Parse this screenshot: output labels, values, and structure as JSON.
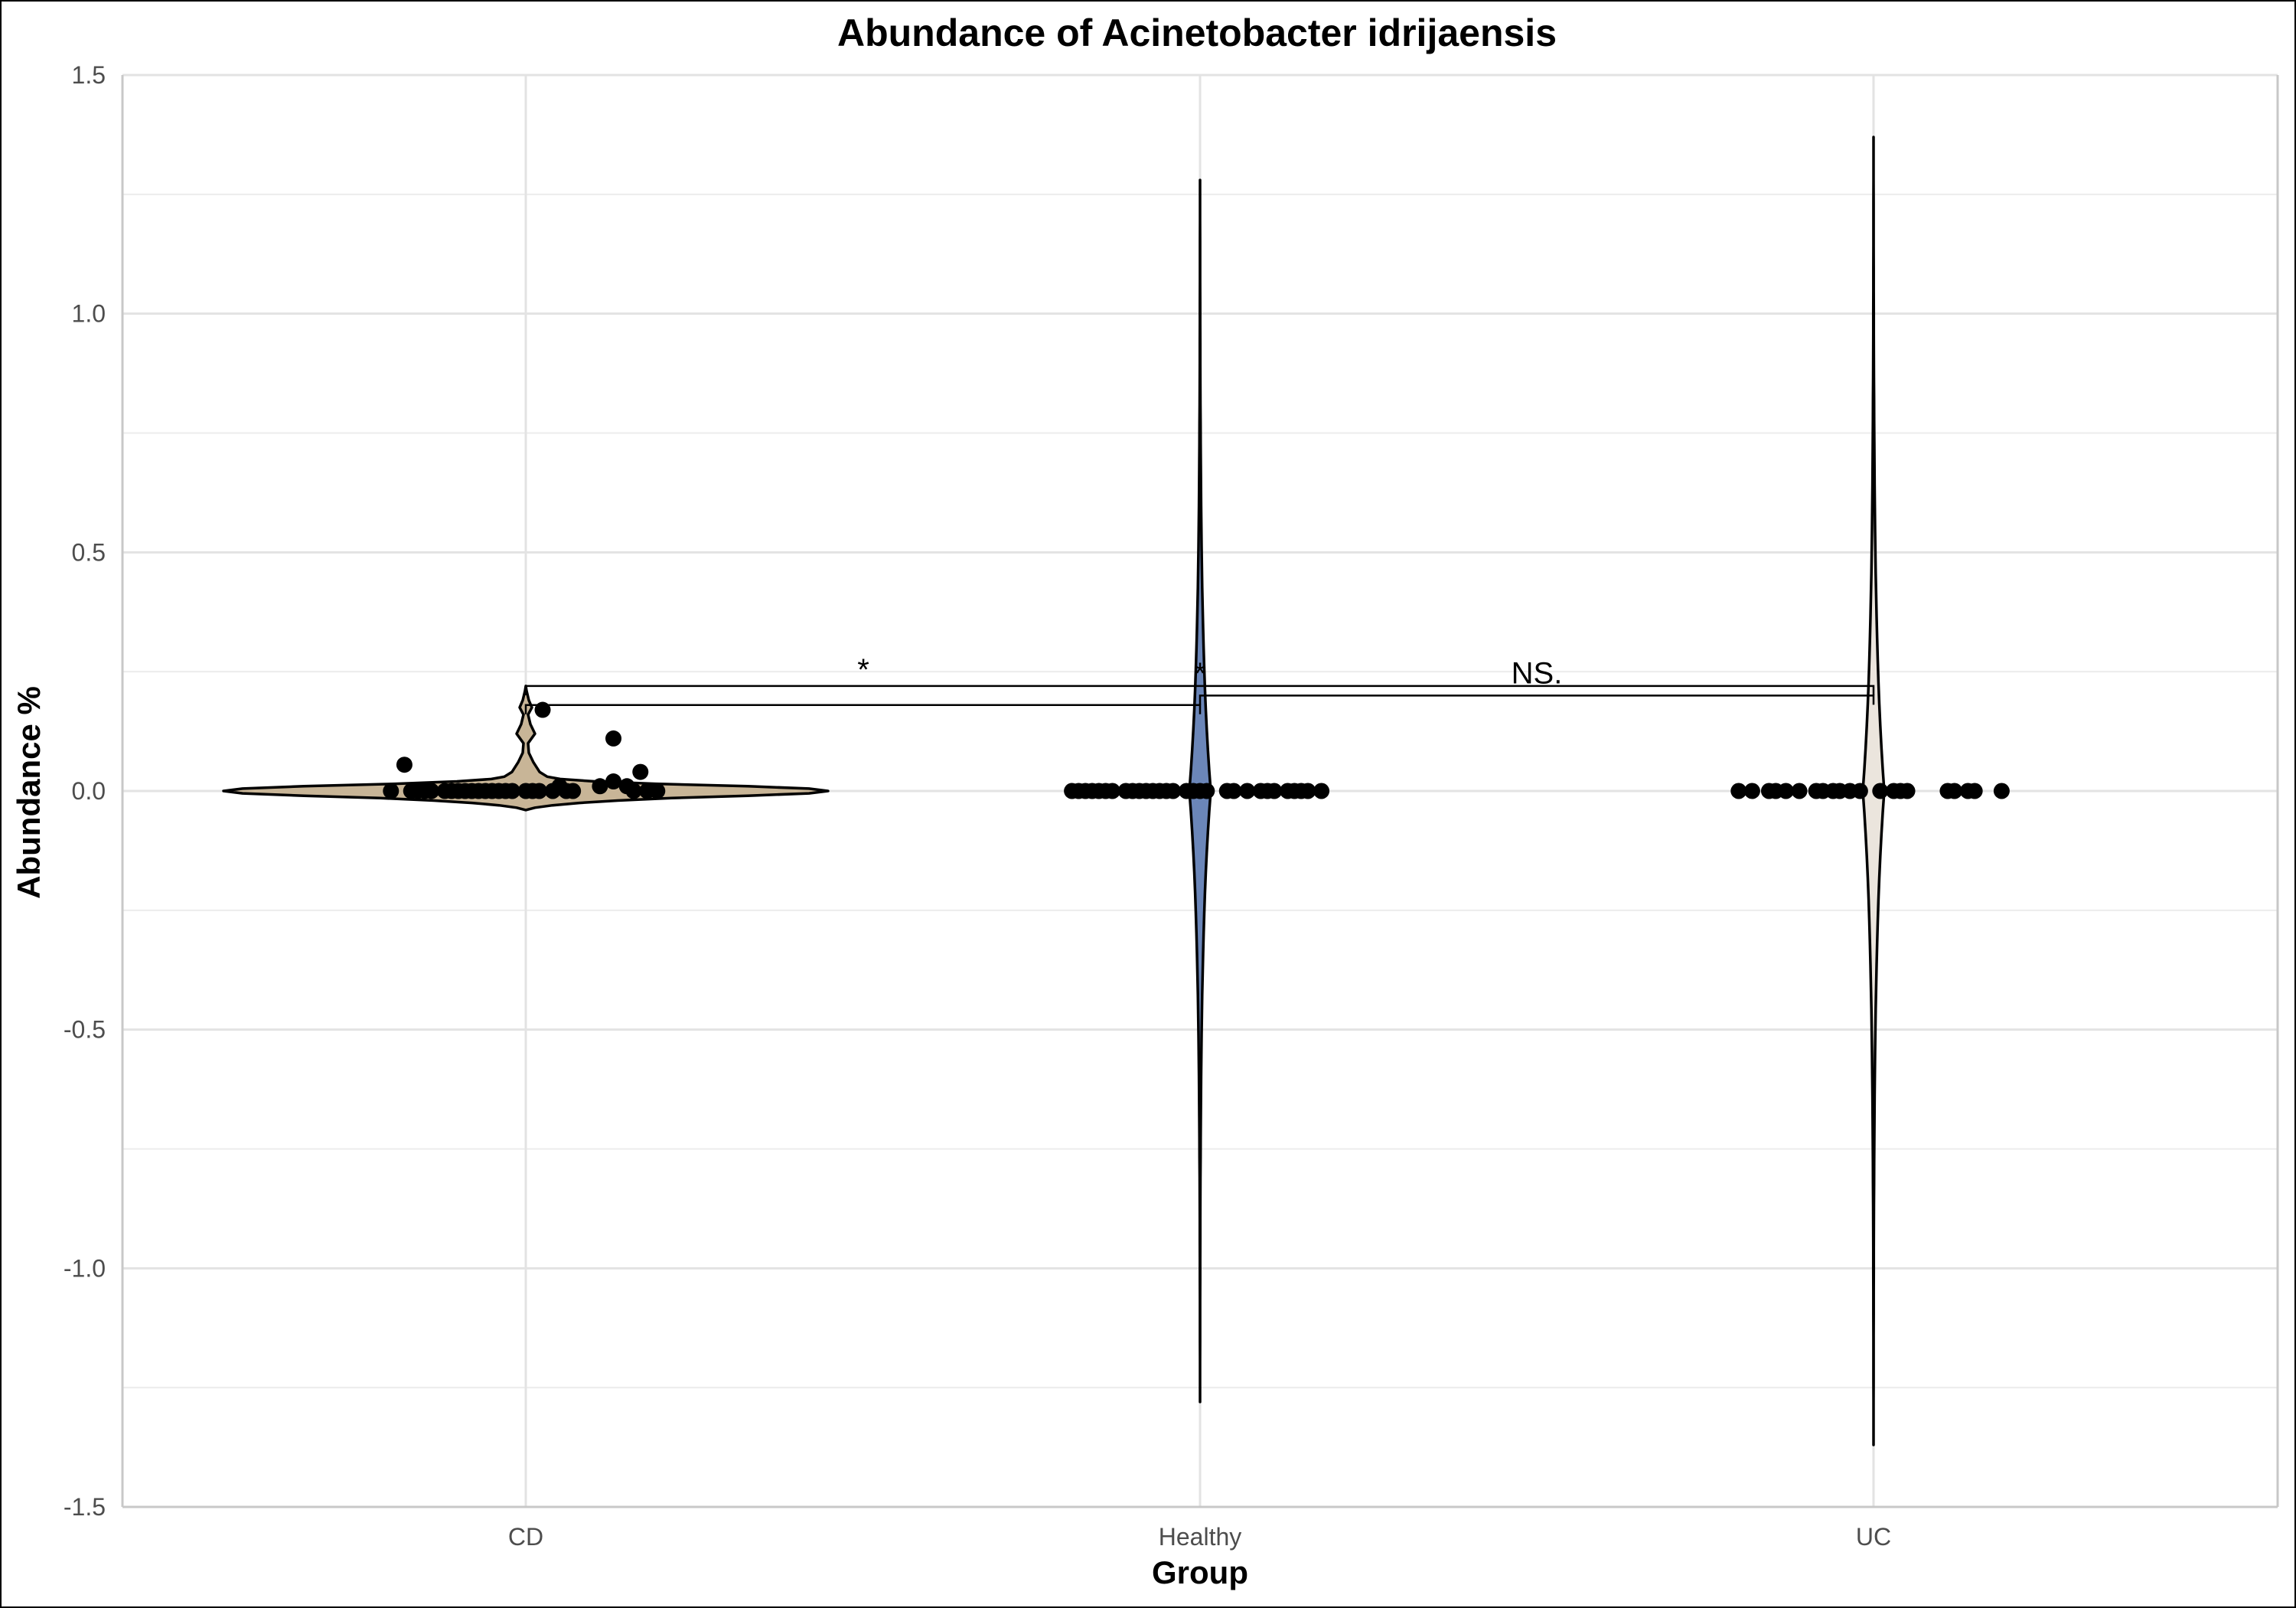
{
  "chart_data": {
    "type": "violin",
    "title": "Abundance of Acinetobacter idrijaensis",
    "xlabel": "Group",
    "ylabel": "Abundance %",
    "ylim": [
      -1.5,
      1.5
    ],
    "yticks": [
      -1.5,
      -1.0,
      -0.5,
      0.0,
      0.5,
      1.0,
      1.5
    ],
    "ytick_labels": [
      "-1.5",
      "-1.0",
      "-0.5",
      "0.0",
      "0.5",
      "1.0",
      "1.5"
    ],
    "categories": [
      "CD",
      "Healthy",
      "UC"
    ],
    "grid": true,
    "legend": "none",
    "groups": [
      {
        "name": "CD",
        "color": "#c8b597",
        "y_range": [
          -0.04,
          0.22
        ],
        "points": [
          {
            "x": -0.2,
            "y": 0.0
          },
          {
            "x": -0.18,
            "y": 0.055
          },
          {
            "x": -0.17,
            "y": 0.0
          },
          {
            "x": -0.16,
            "y": 0.0
          },
          {
            "x": -0.15,
            "y": 0.0
          },
          {
            "x": -0.14,
            "y": 0.0
          },
          {
            "x": -0.12,
            "y": 0.0
          },
          {
            "x": -0.11,
            "y": 0.0
          },
          {
            "x": -0.1,
            "y": 0.0
          },
          {
            "x": -0.09,
            "y": 0.0
          },
          {
            "x": -0.08,
            "y": 0.0
          },
          {
            "x": -0.07,
            "y": 0.0
          },
          {
            "x": -0.06,
            "y": 0.0
          },
          {
            "x": -0.05,
            "y": 0.0
          },
          {
            "x": -0.04,
            "y": 0.0
          },
          {
            "x": -0.03,
            "y": 0.0
          },
          {
            "x": -0.02,
            "y": 0.0
          },
          {
            "x": 0.0,
            "y": 0.0
          },
          {
            "x": 0.01,
            "y": 0.0
          },
          {
            "x": 0.02,
            "y": 0.0
          },
          {
            "x": 0.025,
            "y": 0.17
          },
          {
            "x": 0.04,
            "y": 0.0
          },
          {
            "x": 0.05,
            "y": 0.01
          },
          {
            "x": 0.06,
            "y": 0.0
          },
          {
            "x": 0.07,
            "y": 0.0
          },
          {
            "x": 0.11,
            "y": 0.01
          },
          {
            "x": 0.13,
            "y": 0.11
          },
          {
            "x": 0.13,
            "y": 0.02
          },
          {
            "x": 0.15,
            "y": 0.01
          },
          {
            "x": 0.16,
            "y": 0.0
          },
          {
            "x": 0.17,
            "y": 0.04
          },
          {
            "x": 0.18,
            "y": 0.0
          },
          {
            "x": 0.195,
            "y": 0.0
          }
        ]
      },
      {
        "name": "Healthy",
        "color": "#6b86b8",
        "y_range": [
          -1.28,
          1.28
        ],
        "points": [
          {
            "x": -0.19,
            "y": 0.0
          },
          {
            "x": -0.18,
            "y": 0.0
          },
          {
            "x": -0.17,
            "y": 0.0
          },
          {
            "x": -0.16,
            "y": 0.0
          },
          {
            "x": -0.15,
            "y": 0.0
          },
          {
            "x": -0.14,
            "y": 0.0
          },
          {
            "x": -0.13,
            "y": 0.0
          },
          {
            "x": -0.11,
            "y": 0.0
          },
          {
            "x": -0.1,
            "y": 0.0
          },
          {
            "x": -0.09,
            "y": 0.0
          },
          {
            "x": -0.08,
            "y": 0.0
          },
          {
            "x": -0.07,
            "y": 0.0
          },
          {
            "x": -0.06,
            "y": 0.0
          },
          {
            "x": -0.05,
            "y": 0.0
          },
          {
            "x": -0.04,
            "y": 0.0
          },
          {
            "x": -0.02,
            "y": 0.0
          },
          {
            "x": -0.01,
            "y": 0.0
          },
          {
            "x": 0.0,
            "y": 0.0
          },
          {
            "x": 0.01,
            "y": 0.0
          },
          {
            "x": 0.04,
            "y": 0.0
          },
          {
            "x": 0.05,
            "y": 0.0
          },
          {
            "x": 0.07,
            "y": 0.0
          },
          {
            "x": 0.09,
            "y": 0.0
          },
          {
            "x": 0.1,
            "y": 0.0
          },
          {
            "x": 0.11,
            "y": 0.0
          },
          {
            "x": 0.13,
            "y": 0.0
          },
          {
            "x": 0.14,
            "y": 0.0
          },
          {
            "x": 0.15,
            "y": 0.0
          },
          {
            "x": 0.16,
            "y": 0.0
          },
          {
            "x": 0.18,
            "y": 0.0
          }
        ]
      },
      {
        "name": "UC",
        "color": "#ebe5dd",
        "y_range": [
          -1.37,
          1.37
        ],
        "points": [
          {
            "x": -0.2,
            "y": 0.0
          },
          {
            "x": -0.18,
            "y": 0.0
          },
          {
            "x": -0.155,
            "y": 0.0
          },
          {
            "x": -0.145,
            "y": 0.0
          },
          {
            "x": -0.13,
            "y": 0.0
          },
          {
            "x": -0.11,
            "y": 0.0
          },
          {
            "x": -0.085,
            "y": 0.0
          },
          {
            "x": -0.075,
            "y": 0.0
          },
          {
            "x": -0.06,
            "y": 0.0
          },
          {
            "x": -0.05,
            "y": 0.0
          },
          {
            "x": -0.035,
            "y": 0.0
          },
          {
            "x": -0.02,
            "y": 0.0
          },
          {
            "x": 0.01,
            "y": 0.0
          },
          {
            "x": 0.03,
            "y": 0.0
          },
          {
            "x": 0.04,
            "y": 0.0
          },
          {
            "x": 0.05,
            "y": 0.0
          },
          {
            "x": 0.11,
            "y": 0.0
          },
          {
            "x": 0.12,
            "y": 0.0
          },
          {
            "x": 0.14,
            "y": 0.0
          },
          {
            "x": 0.15,
            "y": 0.0
          },
          {
            "x": 0.19,
            "y": 0.0
          }
        ]
      }
    ],
    "comparisons": [
      {
        "groups": [
          "CD",
          "Healthy"
        ],
        "label": "*",
        "y": 0.18
      },
      {
        "groups": [
          "CD",
          "UC"
        ],
        "label": "*",
        "y": 0.22
      },
      {
        "groups": [
          "Healthy",
          "UC"
        ],
        "label": "NS.",
        "y": 0.2
      }
    ]
  }
}
